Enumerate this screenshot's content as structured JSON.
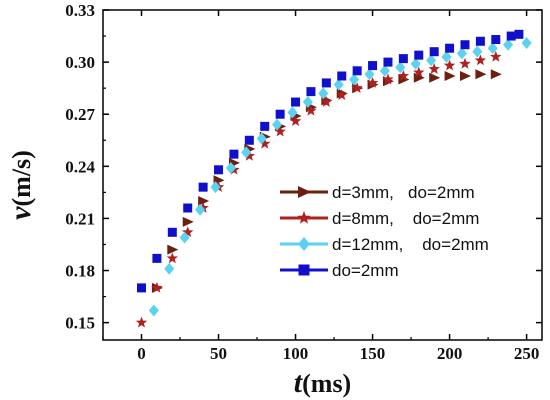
{
  "chart_data": {
    "type": "scatter",
    "title": "",
    "xlabel": {
      "symbol": "t",
      "unit": "(ms)"
    },
    "ylabel": {
      "symbol": "v",
      "unit": "(m/s)"
    },
    "xlim": [
      -25,
      260
    ],
    "ylim": [
      0.14,
      0.33
    ],
    "xticks": [
      0,
      50,
      100,
      150,
      200,
      250
    ],
    "yticks": [
      0.15,
      0.18,
      0.21,
      0.24,
      0.27,
      0.3,
      0.33
    ],
    "ytick_labels": [
      "0.15",
      "0.18",
      "0.21",
      "0.24",
      "0.27",
      "0.30",
      "0.33"
    ],
    "grid": false,
    "legend_position": "center-right",
    "series": [
      {
        "name": "d=3mm,   do=2mm",
        "marker": "triangle-right",
        "color": "#6b2010",
        "x": [
          10,
          20,
          30,
          40,
          50,
          60,
          70,
          80,
          90,
          100,
          110,
          120,
          130,
          140,
          150,
          160,
          170,
          180,
          190,
          200,
          210,
          220,
          230
        ],
        "y": [
          0.17,
          0.192,
          0.208,
          0.22,
          0.232,
          0.242,
          0.25,
          0.257,
          0.263,
          0.269,
          0.274,
          0.278,
          0.282,
          0.285,
          0.287,
          0.289,
          0.29,
          0.291,
          0.291,
          0.292,
          0.292,
          0.293,
          0.293
        ]
      },
      {
        "name": "d=8mm,    do=2mm",
        "marker": "star",
        "color": "#b02020",
        "x": [
          0,
          10,
          20,
          30,
          40,
          50,
          60,
          70,
          80,
          90,
          100,
          110,
          120,
          130,
          140,
          150,
          160,
          170,
          180,
          190,
          200,
          210,
          220,
          230
        ],
        "y": [
          0.15,
          0.17,
          0.187,
          0.202,
          0.216,
          0.228,
          0.238,
          0.246,
          0.253,
          0.26,
          0.266,
          0.272,
          0.277,
          0.281,
          0.285,
          0.288,
          0.29,
          0.292,
          0.294,
          0.296,
          0.298,
          0.299,
          0.301,
          0.303
        ]
      },
      {
        "name": "d=12mm,    do=2mm",
        "marker": "diamond",
        "color": "#5ad2f0",
        "x": [
          8,
          18,
          28,
          38,
          48,
          58,
          68,
          78,
          88,
          98,
          108,
          118,
          128,
          138,
          148,
          158,
          168,
          178,
          188,
          198,
          208,
          218,
          228,
          238,
          250
        ],
        "y": [
          0.157,
          0.181,
          0.199,
          0.215,
          0.228,
          0.239,
          0.248,
          0.256,
          0.264,
          0.271,
          0.277,
          0.282,
          0.287,
          0.29,
          0.293,
          0.295,
          0.297,
          0.299,
          0.301,
          0.303,
          0.305,
          0.306,
          0.308,
          0.31,
          0.311
        ]
      },
      {
        "name": "do=2mm",
        "marker": "square",
        "color": "#1010cc",
        "x": [
          0,
          10,
          20,
          30,
          40,
          50,
          60,
          70,
          80,
          90,
          100,
          110,
          120,
          130,
          140,
          150,
          160,
          170,
          180,
          190,
          200,
          210,
          220,
          230,
          240,
          245
        ],
        "y": [
          0.17,
          0.187,
          0.202,
          0.216,
          0.228,
          0.238,
          0.247,
          0.255,
          0.263,
          0.27,
          0.277,
          0.283,
          0.288,
          0.292,
          0.295,
          0.298,
          0.3,
          0.302,
          0.304,
          0.306,
          0.308,
          0.31,
          0.312,
          0.313,
          0.315,
          0.316
        ]
      }
    ]
  }
}
